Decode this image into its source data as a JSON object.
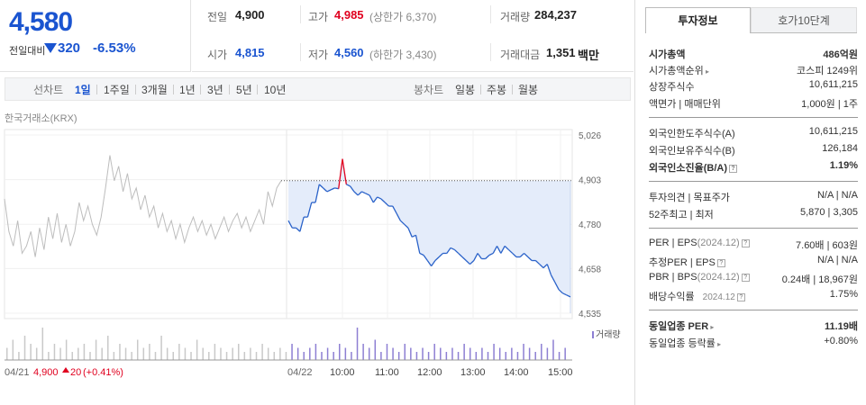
{
  "quote": {
    "price": "4,580",
    "change_label": "전일대비",
    "change": "320",
    "change_pct": "-6.53%"
  },
  "stats": {
    "prev_label": "전일",
    "prev": "4,900",
    "high_label": "고가",
    "high": "4,985",
    "upper_limit": "(상한가 6,370)",
    "volume_label": "거래량",
    "volume": "284,237",
    "open_label": "시가",
    "open": "4,815",
    "low_label": "저가",
    "low": "4,560",
    "lower_limit": "(하한가 3,430)",
    "value_label": "거래대금",
    "value": "1,351",
    "value_unit": "백만"
  },
  "tabs": {
    "line_label": "선차트",
    "periods": [
      "1일",
      "1주일",
      "3개월",
      "1년",
      "3년",
      "5년",
      "10년"
    ],
    "candle_label": "봉차트",
    "candles": [
      "일봉",
      "주봉",
      "월봉"
    ]
  },
  "exchange": "한국거래소(KRX)",
  "right": {
    "tabs": [
      "투자정보",
      "호가10단계"
    ],
    "market_cap": {
      "label": "시가총액",
      "value": "486억원"
    },
    "cap_rank": {
      "label": "시가총액순위",
      "market": "코스피",
      "rank": "1249위"
    },
    "shares": {
      "label": "상장주식수",
      "value": "10,611,215"
    },
    "par": {
      "label": "액면가 | 매매단위",
      "value": "1,000원 | 1주"
    },
    "foreign_limit": {
      "label": "외국인한도주식수(A)",
      "value": "10,611,215"
    },
    "foreign_hold": {
      "label": "외국인보유주식수(B)",
      "value": "126,184"
    },
    "foreign_ratio": {
      "label": "외국인소진율(B/A)",
      "value": "1.19%"
    },
    "opinion": {
      "label": "투자의견 | 목표주가",
      "value": "N/A | N/A"
    },
    "range52": {
      "label": "52주최고 | 최저",
      "value": "5,870 | 3,305"
    },
    "per_eps": {
      "label": "PER | EPS",
      "period": "(2024.12)",
      "value": "7.60배 | 603원"
    },
    "est_per": {
      "label": "추정PER | EPS",
      "value": "N/A | N/A"
    },
    "pbr_bps": {
      "label": "PBR | BPS",
      "period": "(2024.12)",
      "value": "0.24배 | 18,967원"
    },
    "dividend": {
      "label": "배당수익률",
      "period": "2024.12",
      "value": "1.75%"
    },
    "sector_per": {
      "label": "동일업종 PER",
      "value": "11.19배"
    },
    "sector_change": {
      "label": "동일업종 등락률",
      "value": "+0.80%"
    }
  },
  "chart_data": {
    "type": "line",
    "y_ticks": [
      "5,026",
      "4,903",
      "4,780",
      "4,658",
      "4,535"
    ],
    "ylim": [
      4535,
      5026
    ],
    "prev_close": 4900,
    "x_ticks": [
      "10:00",
      "11:00",
      "12:00",
      "13:00",
      "14:00",
      "15:00"
    ],
    "prev_day": {
      "date": "04/21",
      "close": "4,900",
      "change": "20",
      "change_pct": "(+0.41%)"
    },
    "today_date": "04/22",
    "volume_label": "거래량",
    "series": [
      {
        "values": [
          4850,
          4760,
          4720,
          4790,
          4700,
          4720,
          4760,
          4690,
          4770,
          4710,
          4800,
          4740,
          4810,
          4730,
          4780,
          4720,
          4760,
          4840,
          4790,
          4830,
          4780,
          4750,
          4800,
          4880,
          4970,
          4900,
          4940,
          4870,
          4920,
          4850,
          4880,
          4820,
          4860,
          4800,
          4830,
          4770,
          4810,
          4760,
          4790,
          4740,
          4780,
          4730,
          4770,
          4800,
          4760,
          4790,
          4750,
          4780,
          4740,
          4770,
          4800,
          4760,
          4790,
          4810,
          4770,
          4800,
          4760,
          4790,
          4820,
          4780,
          4870,
          4830,
          4880,
          4900
        ]
      },
      {
        "values": [
          4790,
          4770,
          4770,
          4760,
          4800,
          4800,
          4840,
          4840,
          4890,
          4880,
          4870,
          4875,
          4880,
          4878,
          4960,
          4890,
          4885,
          4870,
          4860,
          4870,
          4865,
          4860,
          4840,
          4855,
          4850,
          4840,
          4830,
          4830,
          4810,
          4790,
          4780,
          4770,
          4745,
          4750,
          4700,
          4695,
          4680,
          4665,
          4680,
          4690,
          4700,
          4700,
          4715,
          4710,
          4700,
          4690,
          4680,
          4670,
          4680,
          4700,
          4685,
          4685,
          4695,
          4700,
          4720,
          4700,
          4720,
          4710,
          4700,
          4690,
          4690,
          4700,
          4690,
          4680,
          4680,
          4670,
          4660,
          4670,
          4640,
          4620,
          4600,
          4590,
          4585,
          4580
        ]
      }
    ],
    "volume": [
      3,
      5,
      2,
      6,
      4,
      3,
      8,
      2,
      4,
      3,
      5,
      2,
      3,
      4,
      2,
      5,
      3,
      6,
      2,
      4,
      3,
      2,
      5,
      3,
      4,
      2,
      6,
      3,
      2,
      4,
      3,
      2,
      5,
      3,
      2,
      4,
      3,
      2,
      3,
      4,
      2,
      3,
      2,
      4,
      3,
      2,
      3,
      2,
      4,
      3,
      2,
      3,
      4,
      2,
      3,
      2,
      4,
      3,
      2,
      8,
      4,
      3,
      5,
      2,
      4,
      3,
      2,
      4,
      3,
      2,
      3,
      2,
      4,
      3,
      2,
      3,
      2,
      4,
      3,
      2,
      3,
      2,
      4,
      3,
      2,
      3,
      2,
      4,
      3,
      2,
      4,
      3,
      5,
      2,
      3
    ]
  }
}
